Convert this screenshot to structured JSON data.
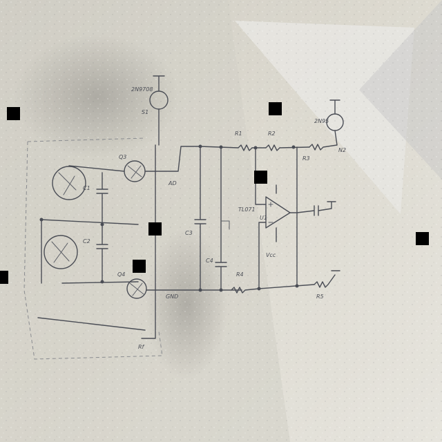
{
  "colors": {
    "paper": "#dedbd1",
    "paper_light": "#ebe9e2",
    "shadow": "#9d9a93",
    "ink": "#4a4d55",
    "redaction": "#000000"
  },
  "labels": {
    "lamp_top_name": "2N9708",
    "lamp_top_ref": "S1",
    "lamp_right_name": "2N95",
    "lamp_right_ref": "N2",
    "q_mid": "Q3",
    "q_bottom": "Q4",
    "cap_a": "C1",
    "cap_b": "C2",
    "cap_c": "C3",
    "cap_d": "C4",
    "res_a": "R1",
    "res_b": "R2",
    "res_c": "R3",
    "res_d": "R4",
    "res_e": "R5",
    "opamp": "TL071",
    "opamp_ref": "U1",
    "node_top": "Vcc",
    "node_bottom": "GND",
    "node_mid": "AD",
    "feedback": "Rf"
  }
}
